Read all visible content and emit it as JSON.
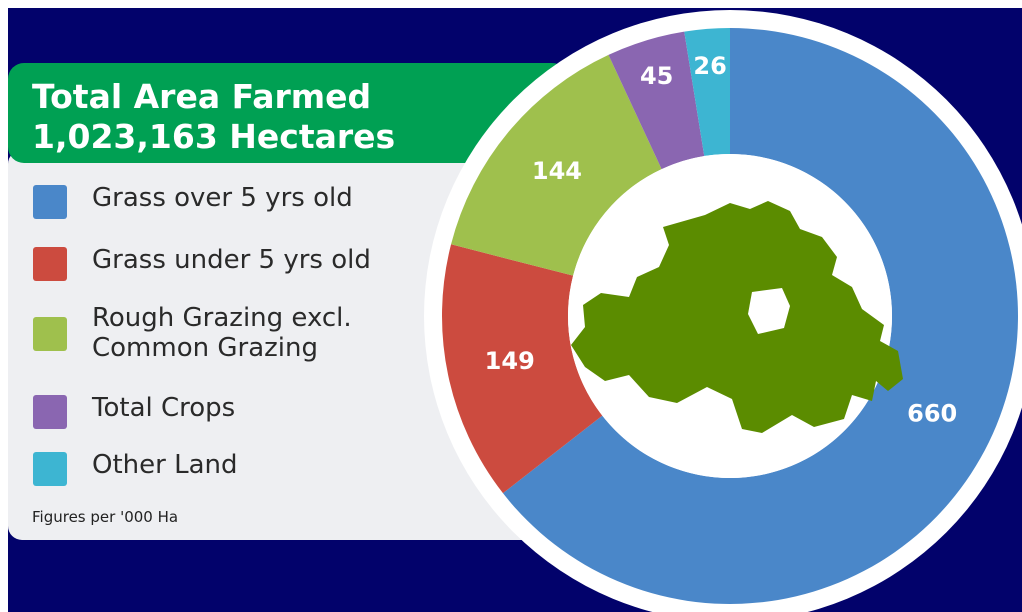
{
  "chart_data": {
    "type": "pie",
    "donut": true,
    "title": "Total Area Farmed",
    "subtitle": "1,023,163 Hectares",
    "note": "Figures per '000 Ha",
    "categories": [
      "Grass over 5 yrs old",
      "Grass under 5 yrs old",
      "Rough Grazing excl. Common Grazing",
      "Total Crops",
      "Other Land"
    ],
    "values": [
      660,
      149,
      144,
      45,
      26
    ],
    "colors": [
      "#4a87c9",
      "#cc4b3f",
      "#9fc04d",
      "#8a66b1",
      "#3db5d2"
    ]
  }
}
